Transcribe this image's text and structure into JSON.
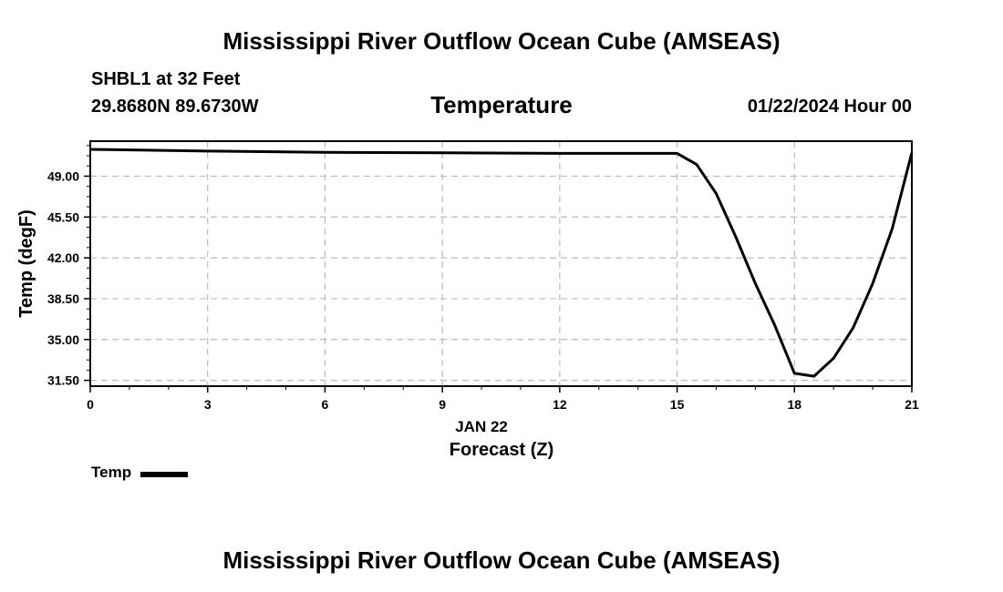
{
  "header": {
    "title": "Mississippi River Outflow Ocean Cube (AMSEAS)",
    "station": "SHBL1 at 32 Feet",
    "coords": "29.8680N  89.6730W",
    "subtitle": "Temperature",
    "datetime": "01/22/2024 Hour 00"
  },
  "footer": {
    "title": "Mississippi River Outflow Ocean Cube (AMSEAS)"
  },
  "legend": {
    "label": "Temp"
  },
  "chart_data": {
    "type": "line",
    "title": "Temperature",
    "xlabel": "Forecast (Z)",
    "ylabel": "Temp (degF)",
    "date_label": "JAN 22",
    "xlim": [
      0,
      21
    ],
    "ylim": [
      31.0,
      52.0
    ],
    "x_ticks": [
      0,
      3,
      6,
      9,
      12,
      15,
      18,
      21
    ],
    "x_tick_labels": [
      "0",
      "3",
      "6",
      "9",
      "12",
      "15",
      "18",
      "21"
    ],
    "y_ticks": [
      31.5,
      35.0,
      38.5,
      42.0,
      45.5,
      49.0
    ],
    "y_tick_labels": [
      "31.50",
      "35.00",
      "38.50",
      "42.00",
      "45.50",
      "49.00"
    ],
    "grid": true,
    "legend_position": "bottom-left",
    "series": [
      {
        "name": "Temp",
        "color": "#000000",
        "x": [
          0,
          3,
          6,
          9,
          12,
          15,
          15.5,
          16,
          16.5,
          17,
          17.5,
          18,
          18.5,
          19,
          19.5,
          20,
          20.5,
          21
        ],
        "y": [
          51.3,
          51.15,
          51.05,
          51.0,
          50.95,
          50.95,
          50.0,
          47.5,
          43.8,
          39.8,
          36.2,
          32.1,
          31.85,
          33.4,
          36.0,
          39.8,
          44.5,
          51.0
        ]
      }
    ]
  }
}
